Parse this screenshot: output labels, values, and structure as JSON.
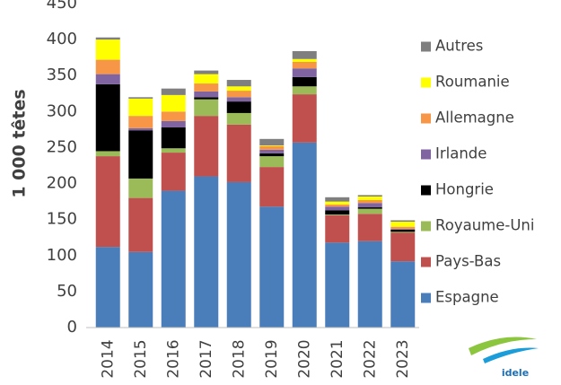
{
  "chart_data": {
    "type": "stacked_bar",
    "y_label": "1 000 têtes",
    "categories": [
      "2014",
      "2015",
      "2016",
      "2017",
      "2018",
      "2019",
      "2020",
      "2021",
      "2022",
      "2023"
    ],
    "series": [
      {
        "name": "Espagne",
        "color": "#4a7ebb",
        "values": [
          112,
          105,
          190,
          210,
          202,
          168,
          257,
          118,
          120,
          92
        ]
      },
      {
        "name": "Pays-Bas",
        "color": "#c0504d",
        "values": [
          126,
          75,
          53,
          84,
          80,
          55,
          67,
          38,
          38,
          40
        ]
      },
      {
        "name": "Royaume-Uni",
        "color": "#9bbb59",
        "values": [
          7,
          27,
          6,
          23,
          16,
          15,
          11,
          1,
          7,
          1
        ]
      },
      {
        "name": "Hongrie",
        "color": "#000000",
        "values": [
          93,
          67,
          29,
          3,
          16,
          4,
          13,
          6,
          2,
          3
        ]
      },
      {
        "name": "Irlande",
        "color": "#8064a2",
        "values": [
          14,
          3,
          9,
          8,
          6,
          5,
          12,
          5,
          6,
          1
        ]
      },
      {
        "name": "Allemagne",
        "color": "#f79646",
        "values": [
          20,
          17,
          13,
          11,
          9,
          5,
          9,
          3,
          4,
          3
        ]
      },
      {
        "name": "Roumanie",
        "color": "#ffff00",
        "values": [
          28,
          24,
          23,
          13,
          6,
          1,
          4,
          4,
          5,
          7
        ]
      },
      {
        "name": "Autres",
        "color": "#7f7f7f",
        "values": [
          3,
          2,
          9,
          5,
          9,
          9,
          11,
          6,
          2,
          2
        ]
      }
    ],
    "ylim": [
      0,
      450
    ],
    "yticks": [
      0,
      50,
      100,
      150,
      200,
      250,
      300,
      350,
      400,
      450
    ],
    "grid": false,
    "legend": "right",
    "logo": "idele"
  }
}
